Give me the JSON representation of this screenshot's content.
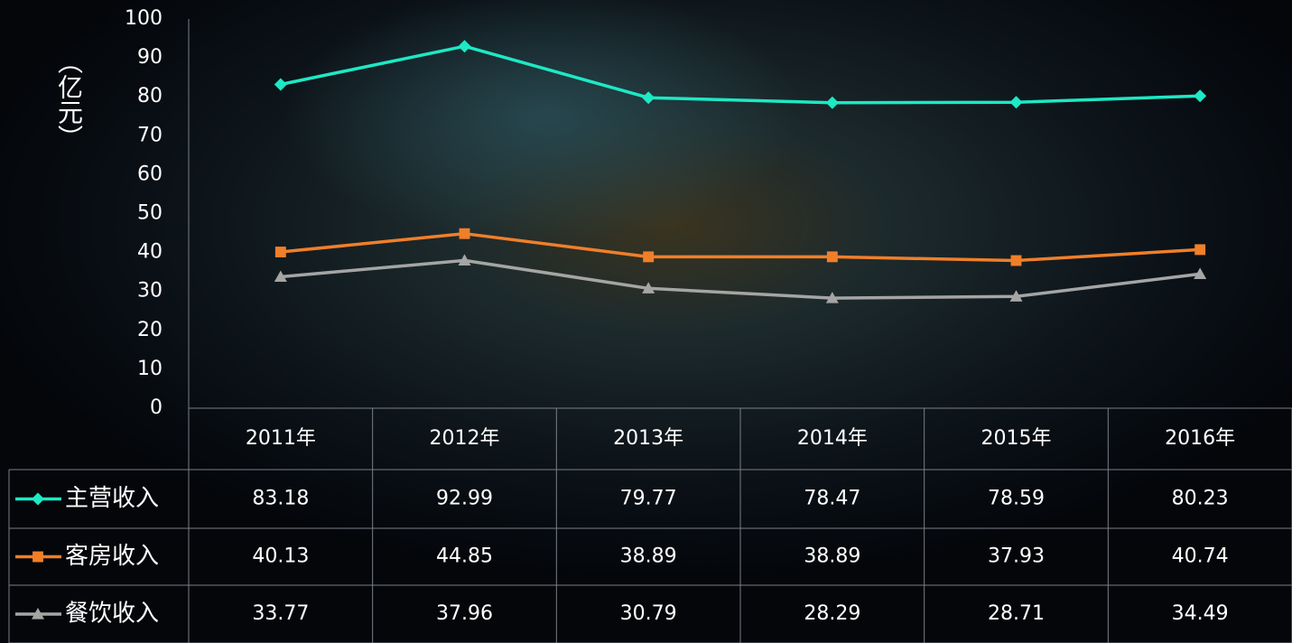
{
  "chart_data": {
    "type": "line",
    "y_label": "（亿元）",
    "categories": [
      "2011年",
      "2012年",
      "2013年",
      "2014年",
      "2015年",
      "2016年"
    ],
    "series": [
      {
        "name": "主营收入",
        "color": "#1de9c4",
        "marker": "diamond",
        "values": [
          83.18,
          92.99,
          79.77,
          78.47,
          78.59,
          80.23
        ]
      },
      {
        "name": "客房收入",
        "color": "#f07f2a",
        "marker": "square",
        "values": [
          40.13,
          44.85,
          38.89,
          38.89,
          37.93,
          40.74
        ]
      },
      {
        "name": "餐饮收入",
        "color": "#a5a5a5",
        "marker": "triangle",
        "values": [
          33.77,
          37.96,
          30.79,
          28.29,
          28.71,
          34.49
        ]
      }
    ],
    "ylim": [
      0,
      100
    ],
    "yticks": [
      0,
      10,
      20,
      30,
      40,
      50,
      60,
      70,
      80,
      90,
      100
    ],
    "data_table": true
  }
}
